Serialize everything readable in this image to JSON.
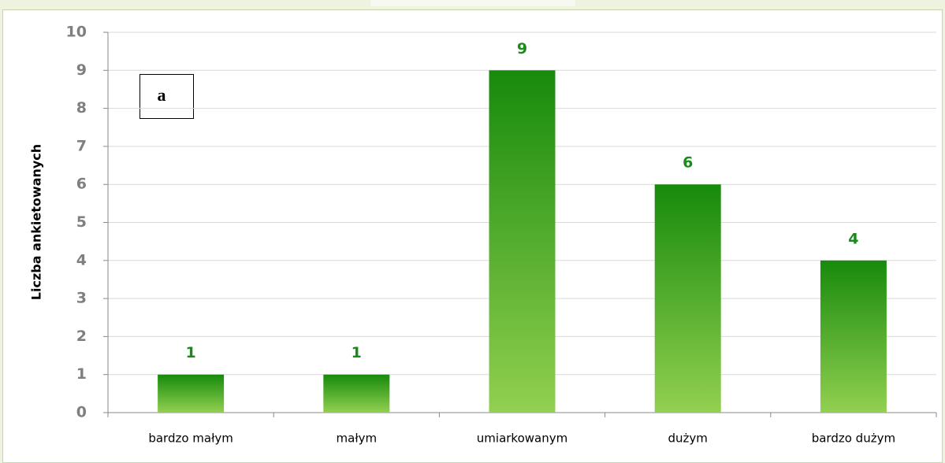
{
  "chart_data": {
    "type": "bar",
    "y_label": "Liczba ankietowanych",
    "annotation": "a",
    "categories": [
      "bardzo małym",
      "małym",
      "umiarkowanym",
      "dużym",
      "bardzo dużym"
    ],
    "values": [
      1,
      1,
      9,
      6,
      4
    ],
    "color": [
      "#178a0c",
      "#92d050"
    ],
    "label_color": "#1a8a1a",
    "ylim": [
      0,
      10
    ],
    "yticks": [
      0,
      1,
      2,
      3,
      4,
      5,
      6,
      7,
      8,
      9,
      10
    ],
    "grid": true
  }
}
